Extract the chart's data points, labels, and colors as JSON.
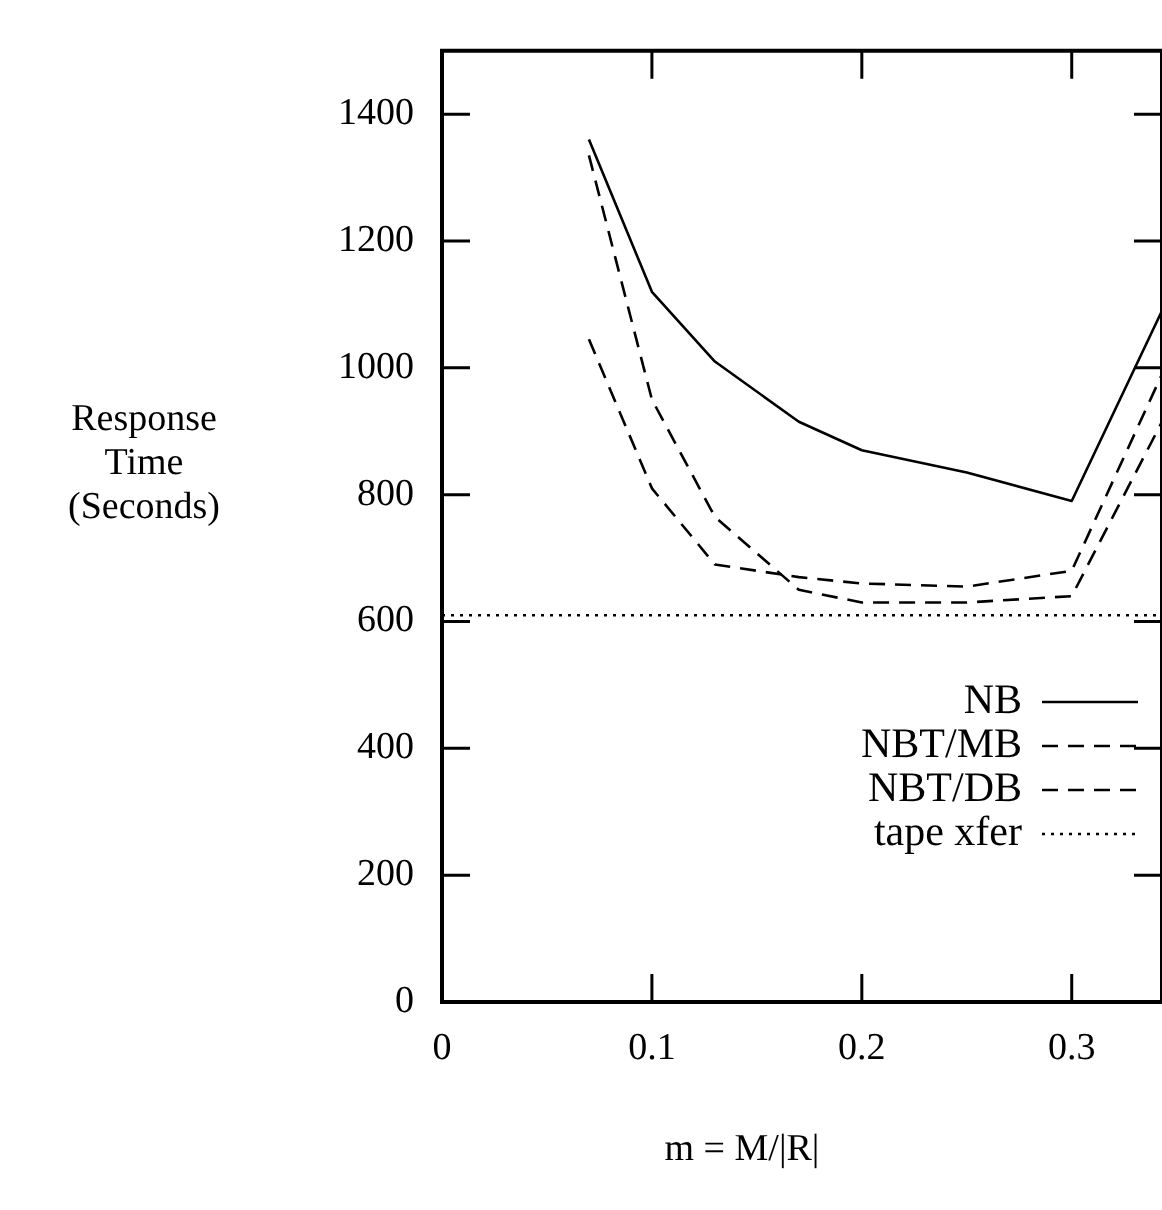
{
  "chart_data": {
    "type": "line",
    "xlabel": "m = M/|R|",
    "ylabel": "Response Time (Seconds)",
    "xlim": [
      0,
      0.343
    ],
    "ylim": [
      0,
      1500
    ],
    "xticks": [
      0,
      0.1,
      0.2,
      0.3
    ],
    "yticks": [
      0,
      200,
      400,
      600,
      800,
      1000,
      1200,
      1400
    ],
    "grid": false,
    "legend": "bottom right",
    "marker": "none",
    "series": [
      {
        "name": "NB",
        "color": "#000000",
        "line_style": "solid",
        "x": [
          0.07,
          0.1,
          0.13,
          0.17,
          0.2,
          0.25,
          0.3,
          0.343
        ],
        "values": [
          1360,
          1120,
          1010,
          915,
          870,
          835,
          790,
          1090
        ]
      },
      {
        "name": "NBT/MB",
        "color": "#000000",
        "line_style": "dashed",
        "x": [
          0.07,
          0.1,
          0.13,
          0.17,
          0.2,
          0.25,
          0.3,
          0.343
        ],
        "values": [
          1335,
          950,
          765,
          650,
          630,
          630,
          640,
          915
        ]
      },
      {
        "name": "NBT/DB",
        "color": "#000000",
        "line_style": "dashed",
        "x": [
          0.07,
          0.1,
          0.13,
          0.17,
          0.2,
          0.25,
          0.3,
          0.343
        ],
        "values": [
          1045,
          810,
          690,
          670,
          660,
          655,
          680,
          990
        ]
      },
      {
        "name": "tape xfer",
        "color": "#000000",
        "line_style": "dotted",
        "x": [
          0,
          0.343
        ],
        "values": [
          610,
          610
        ]
      }
    ]
  }
}
